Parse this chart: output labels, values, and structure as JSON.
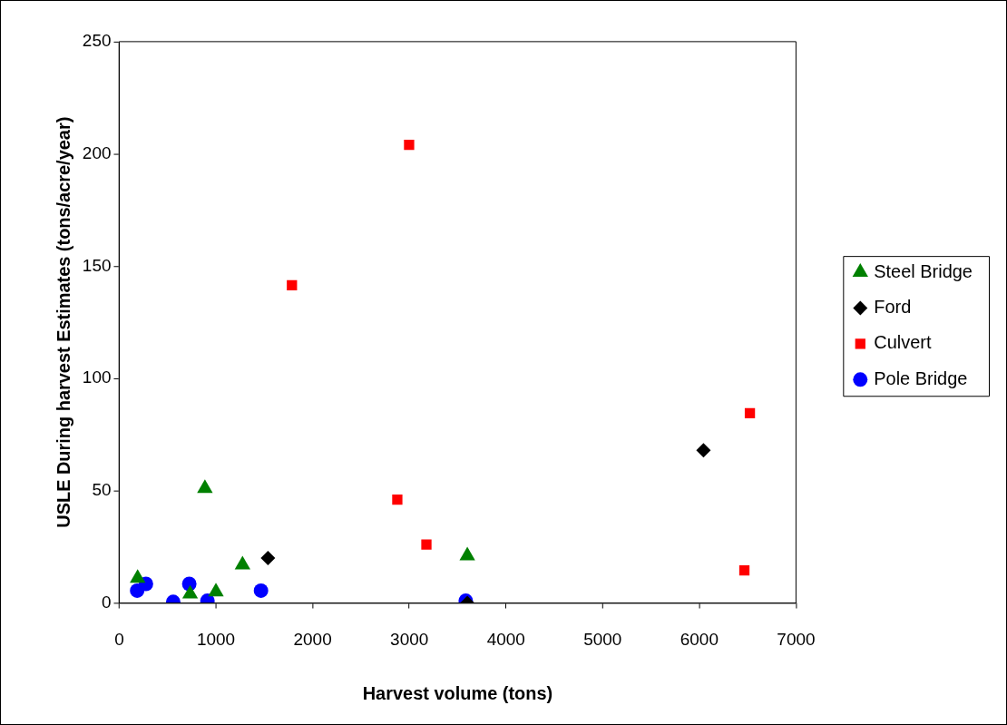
{
  "chart_data": {
    "type": "scatter",
    "xlabel": "Harvest volume (tons)",
    "ylabel": "USLE During harvest Estimates (tons/acre/year)",
    "xlim": [
      0,
      7000
    ],
    "xticks": [
      0,
      1000,
      2000,
      3000,
      4000,
      5000,
      6000,
      7000
    ],
    "ylim": [
      0,
      250
    ],
    "yticks": [
      0,
      50,
      100,
      150,
      200,
      250
    ],
    "grid": false,
    "legend": "right",
    "series": [
      {
        "name": "Steel Bridge",
        "color": "#008000",
        "marker": "triangle",
        "x": [
          190,
          886,
          733,
          1000,
          1275,
          3600
        ],
        "values": [
          11,
          51,
          4,
          5,
          17,
          21
        ]
      },
      {
        "name": "Ford",
        "color": "#000000",
        "marker": "diamond",
        "x": [
          1538,
          3600,
          6043
        ],
        "values": [
          20,
          0,
          68
        ]
      },
      {
        "name": "Culvert",
        "color": "#ff0000",
        "marker": "square",
        "x": [
          2998,
          1786,
          2876,
          3177,
          6523,
          6466
        ],
        "values": [
          204,
          141.5,
          46,
          26,
          84.5,
          14.5
        ]
      },
      {
        "name": "Pole Bridge",
        "color": "#0000ff",
        "marker": "circle",
        "x": [
          185,
          276,
          558,
          724,
          912,
          1466,
          3584
        ],
        "values": [
          5.5,
          8.5,
          0.5,
          8.5,
          1,
          5.5,
          1
        ]
      }
    ]
  }
}
